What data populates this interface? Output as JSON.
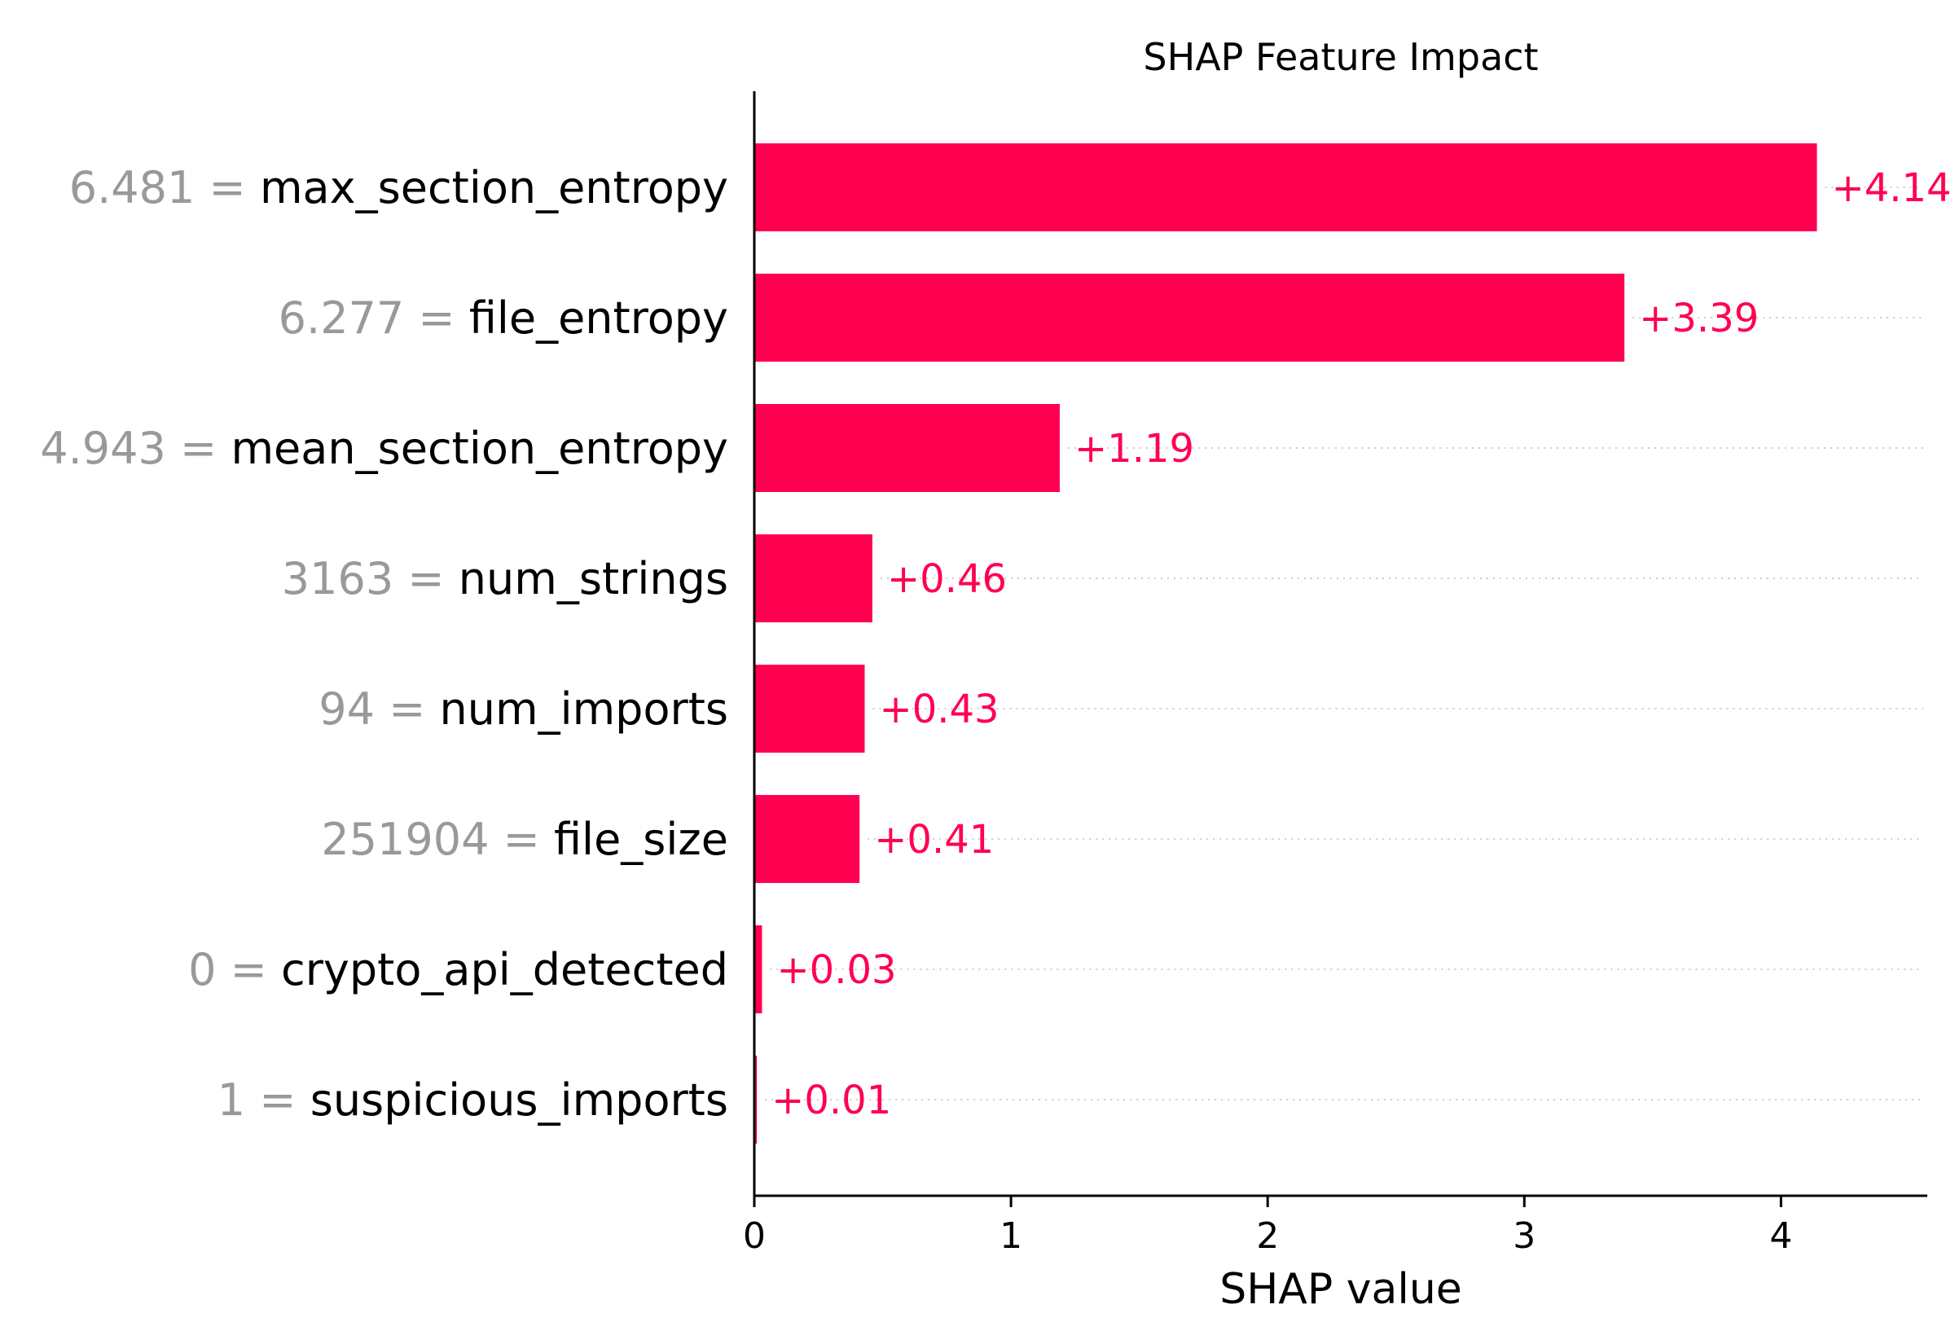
{
  "chart_data": {
    "type": "bar",
    "orientation": "horizontal",
    "title": "SHAP Feature Impact",
    "xlabel": "SHAP value",
    "xlim": [
      0,
      4.57
    ],
    "xticks": [
      0,
      1,
      2,
      3,
      4
    ],
    "grid": false,
    "colors": {
      "bar": "#ff0051",
      "text_positive": "#ff0051",
      "feature_value": "#999999",
      "guide": "#cccccc"
    },
    "features": [
      {
        "name": "max_section_entropy",
        "value": "6.481",
        "shap": 4.14,
        "label": "+4.14"
      },
      {
        "name": "file_entropy",
        "value": "6.277",
        "shap": 3.39,
        "label": "+3.39"
      },
      {
        "name": "mean_section_entropy",
        "value": "4.943",
        "shap": 1.19,
        "label": "+1.19"
      },
      {
        "name": "num_strings",
        "value": "3163",
        "shap": 0.46,
        "label": "+0.46"
      },
      {
        "name": "num_imports",
        "value": "94",
        "shap": 0.43,
        "label": "+0.43"
      },
      {
        "name": "file_size",
        "value": "251904",
        "shap": 0.41,
        "label": "+0.41"
      },
      {
        "name": "crypto_api_detected",
        "value": "0",
        "shap": 0.03,
        "label": "+0.03"
      },
      {
        "name": "suspicious_imports",
        "value": "1",
        "shap": 0.01,
        "label": "+0.01"
      }
    ]
  }
}
